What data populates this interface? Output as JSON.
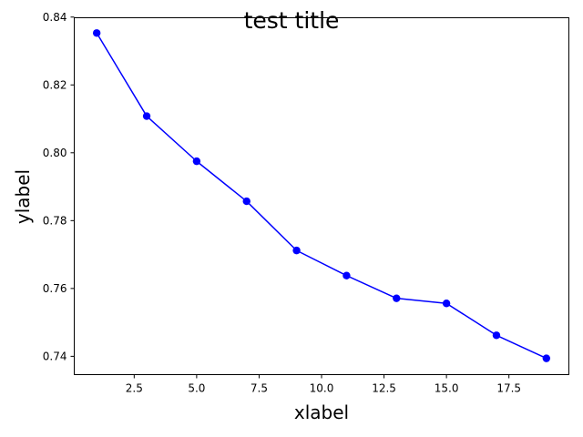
{
  "chart_data": {
    "type": "line",
    "title": "test title",
    "xlabel": "xlabel",
    "ylabel": "ylabel",
    "xlim": [
      0.1,
      19.9
    ],
    "ylim": [
      0.7346,
      0.8398
    ],
    "x_ticks": [
      2.5,
      5.0,
      7.5,
      10.0,
      12.5,
      15.0,
      17.5
    ],
    "x_tick_labels": [
      "2.5",
      "5.0",
      "7.5",
      "10.0",
      "12.5",
      "15.0",
      "17.5"
    ],
    "y_ticks": [
      0.74,
      0.76,
      0.78,
      0.8,
      0.82,
      0.84
    ],
    "y_tick_labels": [
      "0.74",
      "0.76",
      "0.78",
      "0.80",
      "0.82",
      "0.84"
    ],
    "grid": false,
    "series": [
      {
        "color": "#0000ff",
        "marker": "circle",
        "x": [
          1,
          3,
          5,
          7,
          9,
          11,
          13,
          15,
          17,
          19
        ],
        "y": [
          0.8353,
          0.8108,
          0.7975,
          0.7857,
          0.7712,
          0.7638,
          0.7571,
          0.7556,
          0.7462,
          0.7394
        ]
      }
    ]
  }
}
